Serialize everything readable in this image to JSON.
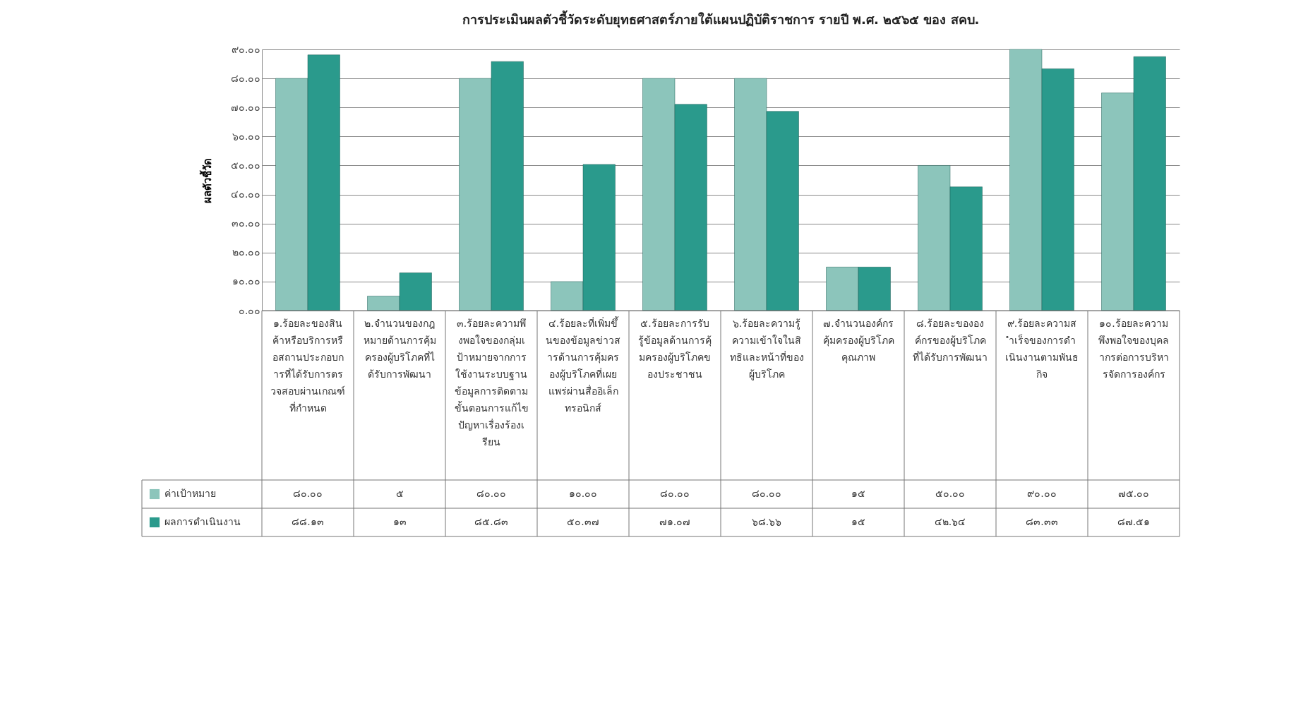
{
  "chart_data": {
    "type": "bar",
    "title": "การประเมินผลตัวชี้วัดระดับยุทธศาสตร์ภายใต้แผนปฏิบัติราชการ รายปี พ.ศ. ๒๕๖๕ ของ สคบ.",
    "ylabel": "ผลตัวชี้วัด",
    "categories": [
      "๑.ร้อยละของสินค้าหรือบริการหรือสถานประกอบการที่ได้รับการตรวจสอบผ่านเกณฑ์ที่กำหนด",
      "๒.จำนวนของกฎหมายด้านการคุ้มครองผู้บริโภคที่ได้รับการพัฒนา",
      "๓.ร้อยละความพึงพอใจของกลุ่มเป้าหมายจากการใช้งานระบบฐานข้อมูลการติดตามขั้นตอนการแก้ไขปัญหาเรื่องร้องเรียน",
      "๔.ร้อยละที่เพิ่มขึ้นของข้อมูลข่าวสารด้านการคุ้มครองผู้บริโภคที่เผยแพร่ผ่านสื่ออิเล็กทรอนิกส์",
      "๕.ร้อยละการรับรู้ข้อมูลด้านการคุ้มครองผู้บริโภคของประชาชน",
      "๖.ร้อยละความรู้ความเข้าใจในสิทธิและหน้าที่ของผู้บริโภค",
      "๗.จำนวนองค์กรคุ้มครองผู้บริโภคคุณภาพ",
      "๘.ร้อยละขององค์กรของผู้บริโภคที่ได้รับการพัฒนา",
      "๙.ร้อยละความสำเร็จของการดำเนินงานตามพันธกิจ",
      "๑๐.ร้อยละความพึงพอใจของบุคลากรต่อการบริหารจัดการองค์กร"
    ],
    "series": [
      {
        "name": "ค่าเป้าหมาย",
        "color": "#8cc5bb",
        "values": [
          80,
          5,
          80,
          10,
          80,
          80,
          15,
          50,
          90,
          75
        ],
        "value_labels": [
          "๘๐.๐๐",
          "๕",
          "๘๐.๐๐",
          "๑๐.๐๐",
          "๘๐.๐๐",
          "๘๐.๐๐",
          "๑๕",
          "๕๐.๐๐",
          "๙๐.๐๐",
          "๗๕.๐๐"
        ]
      },
      {
        "name": "ผลการดำเนินงาน",
        "color": "#2a9a8c",
        "values": [
          88.13,
          13,
          85.83,
          50.37,
          71.07,
          68.66,
          15,
          42.64,
          83.33,
          87.51
        ],
        "value_labels": [
          "๘๘.๑๓",
          "๑๓",
          "๘๕.๘๓",
          "๕๐.๓๗",
          "๗๑.๐๗",
          "๖๘.๖๖",
          "๑๕",
          "๔๒.๖๔",
          "๘๓.๓๓",
          "๘๗.๕๑"
        ]
      }
    ],
    "ylim": [
      0,
      90
    ],
    "yticks": [
      {
        "value": 0,
        "label": "๐.๐๐"
      },
      {
        "value": 10,
        "label": "๑๐.๐๐"
      },
      {
        "value": 20,
        "label": "๒๐.๐๐"
      },
      {
        "value": 30,
        "label": "๓๐.๐๐"
      },
      {
        "value": 40,
        "label": "๔๐.๐๐"
      },
      {
        "value": 50,
        "label": "๕๐.๐๐"
      },
      {
        "value": 60,
        "label": "๖๐.๐๐"
      },
      {
        "value": 70,
        "label": "๗๐.๐๐"
      },
      {
        "value": 80,
        "label": "๘๐.๐๐"
      },
      {
        "value": 90,
        "label": "๙๐.๐๐"
      }
    ],
    "grid": "y",
    "legend": "bottom left"
  }
}
